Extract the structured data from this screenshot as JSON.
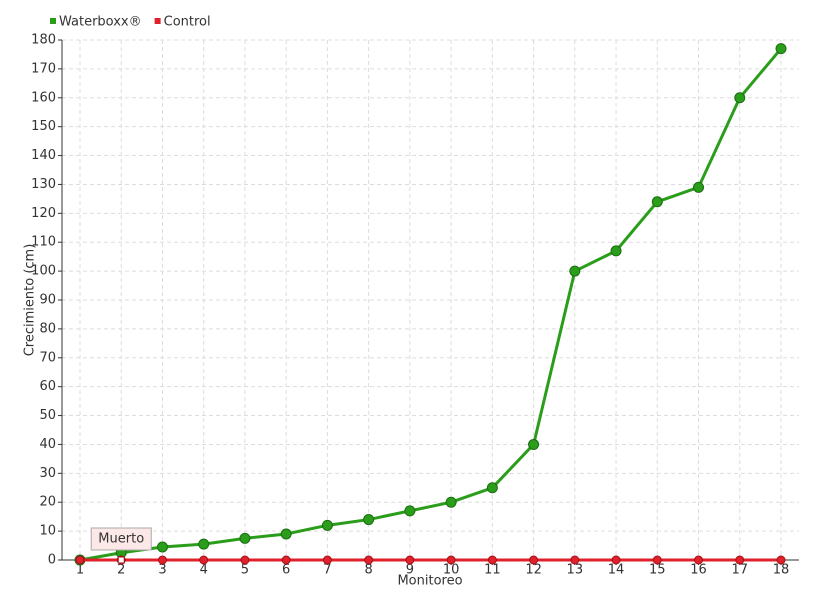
{
  "chart_data": {
    "type": "line",
    "categories": [
      "1",
      "2",
      "3",
      "4",
      "5",
      "6",
      "7",
      "8",
      "9",
      "10",
      "11",
      "12",
      "13",
      "14",
      "15",
      "16",
      "17",
      "18"
    ],
    "series": [
      {
        "name": "Waterboxx®",
        "color": "#2a9d1a",
        "values": [
          0,
          2.5,
          4.5,
          5.5,
          7.5,
          9,
          12,
          14,
          17,
          20,
          25,
          40,
          100,
          107,
          124,
          129,
          160,
          177
        ]
      },
      {
        "name": "Control",
        "color": "#e0202a",
        "values": [
          0,
          0,
          0,
          0,
          0,
          0,
          0,
          0,
          0,
          0,
          0,
          0,
          0,
          0,
          0,
          0,
          0,
          0
        ]
      }
    ],
    "annotation": "Muerto",
    "x_label": "Monitoreo",
    "y_label": "Crecimiento (cm)",
    "ylim": [
      0,
      180
    ],
    "yticks": [
      0,
      10,
      20,
      30,
      40,
      50,
      60,
      70,
      80,
      90,
      100,
      110,
      120,
      130,
      140,
      150,
      160,
      170,
      180
    ],
    "grid": true
  }
}
